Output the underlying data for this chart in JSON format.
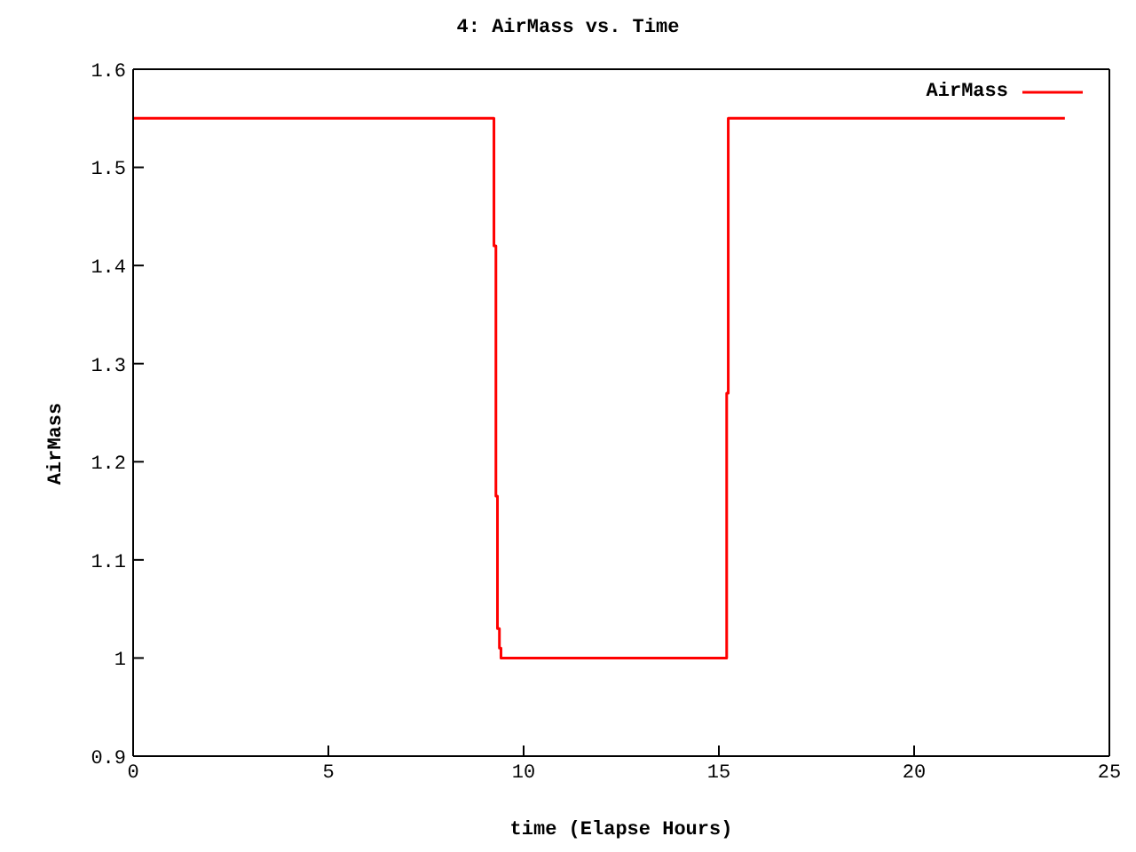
{
  "chart_data": {
    "type": "step",
    "title": "4: AirMass vs. Time",
    "xlabel": "time (Elapse Hours)",
    "ylabel": "AirMass",
    "x": [
      0,
      9.24,
      9.29,
      9.33,
      9.38,
      9.42,
      15.2,
      15.24,
      23.86
    ],
    "series": [
      {
        "name": "AirMass",
        "color": "#ff0000",
        "values": [
          1.55,
          1.42,
          1.165,
          1.03,
          1.01,
          1.0,
          1.27,
          1.55,
          1.55
        ]
      }
    ],
    "xlim": [
      0,
      25
    ],
    "xticks": [
      0,
      5,
      10,
      15,
      20,
      25
    ],
    "ylim": [
      0.9,
      1.6
    ],
    "yticks": [
      0.9,
      1,
      1.1,
      1.2,
      1.3,
      1.4,
      1.5,
      1.6
    ],
    "grid": false,
    "legend": "top right",
    "marker": "none",
    "line_style": "solid"
  }
}
